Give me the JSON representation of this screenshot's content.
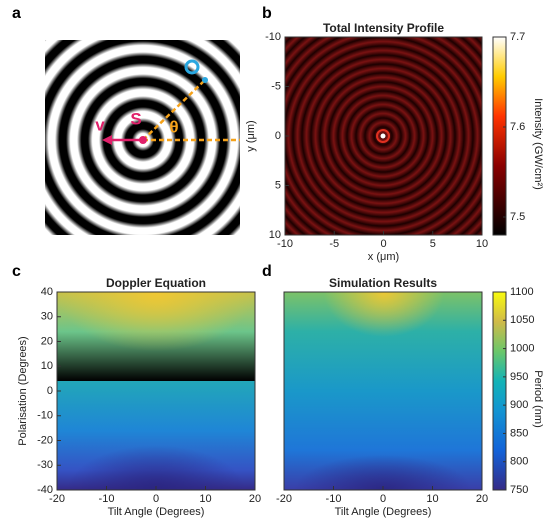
{
  "chart_data": [
    {
      "panel": "a",
      "type": "diagram",
      "labels": {
        "velocity": "v",
        "source": "S",
        "observer": "O",
        "angle": "θ"
      }
    },
    {
      "panel": "b",
      "type": "heatmap",
      "title": "Total Intensity Profile",
      "xlabel": "x (μm)",
      "ylabel": "y (μm)",
      "xlim": [
        -10,
        10
      ],
      "ylim": [
        10,
        -10
      ],
      "xticks": [
        -10,
        -5,
        0,
        5,
        10
      ],
      "yticks": [
        -10,
        -5,
        0,
        5,
        10
      ],
      "colormap": "hot",
      "clim": [
        7.48,
        7.7
      ],
      "cticks": [
        7.5,
        7.6,
        7.7
      ],
      "clabel": "Intensity (GW/cm²)"
    },
    {
      "panel": "c",
      "type": "heatmap",
      "title": "Doppler Equation",
      "xlabel": "Tilt Angle (Degrees)",
      "ylabel": "Polarisation (Degrees)",
      "xlim": [
        -20,
        20
      ],
      "ylim": [
        -40,
        40
      ],
      "xticks": [
        -20,
        -10,
        0,
        10,
        20
      ],
      "yticks": [
        -40,
        -30,
        -20,
        -10,
        0,
        10,
        20,
        30,
        40
      ],
      "colormap": "parula"
    },
    {
      "panel": "d",
      "type": "heatmap",
      "title": "Simulation Results",
      "xlabel": "Tilt Angle (Degrees)",
      "xlim": [
        -20,
        20
      ],
      "ylim": [
        -40,
        40
      ],
      "xticks": [
        -20,
        -10,
        0,
        10,
        20
      ],
      "colormap": "parula",
      "clim": [
        750,
        1100
      ],
      "cticks": [
        750,
        800,
        850,
        900,
        950,
        1000,
        1050,
        1100
      ],
      "clabel": "Period (nm)"
    }
  ]
}
